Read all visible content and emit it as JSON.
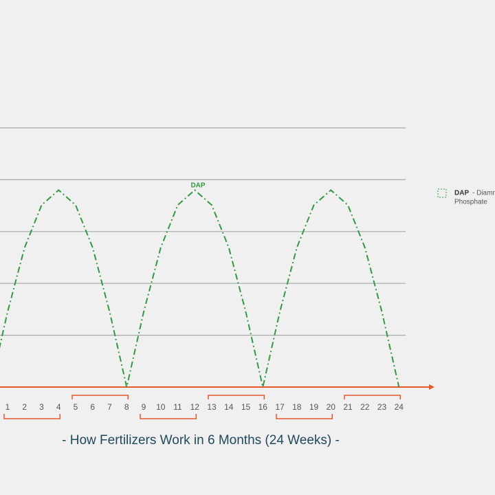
{
  "chart_data": {
    "type": "line",
    "title": "- How Fertilizers Work in 6 Months (24 Weeks) -",
    "annotation": "DAP",
    "legend_description": [
      "- Diammonium",
      "Phosphate"
    ],
    "series": [
      {
        "name": "DAP",
        "color": "#2f9a3f",
        "x": [
          0,
          1,
          2,
          3,
          4,
          5,
          6,
          7,
          8,
          9,
          10,
          11,
          12,
          13,
          14,
          15,
          16,
          17,
          18,
          19,
          20,
          21,
          22,
          23,
          24
        ],
        "values": [
          0,
          1.45,
          2.69,
          3.51,
          3.8,
          3.51,
          2.69,
          1.45,
          0,
          1.45,
          2.69,
          3.51,
          3.8,
          3.51,
          2.69,
          1.45,
          0,
          1.45,
          2.69,
          3.51,
          3.8,
          3.51,
          2.69,
          1.45,
          0
        ]
      }
    ],
    "xticks": [
      1,
      2,
      3,
      4,
      5,
      6,
      7,
      8,
      9,
      10,
      11,
      12,
      13,
      14,
      15,
      16,
      17,
      18,
      19,
      20,
      21,
      22,
      23,
      24
    ],
    "ylim": [
      0,
      5
    ],
    "ygrid": [
      1,
      2,
      3,
      4,
      5
    ],
    "axis_color": "#e8592a",
    "grid": true
  }
}
